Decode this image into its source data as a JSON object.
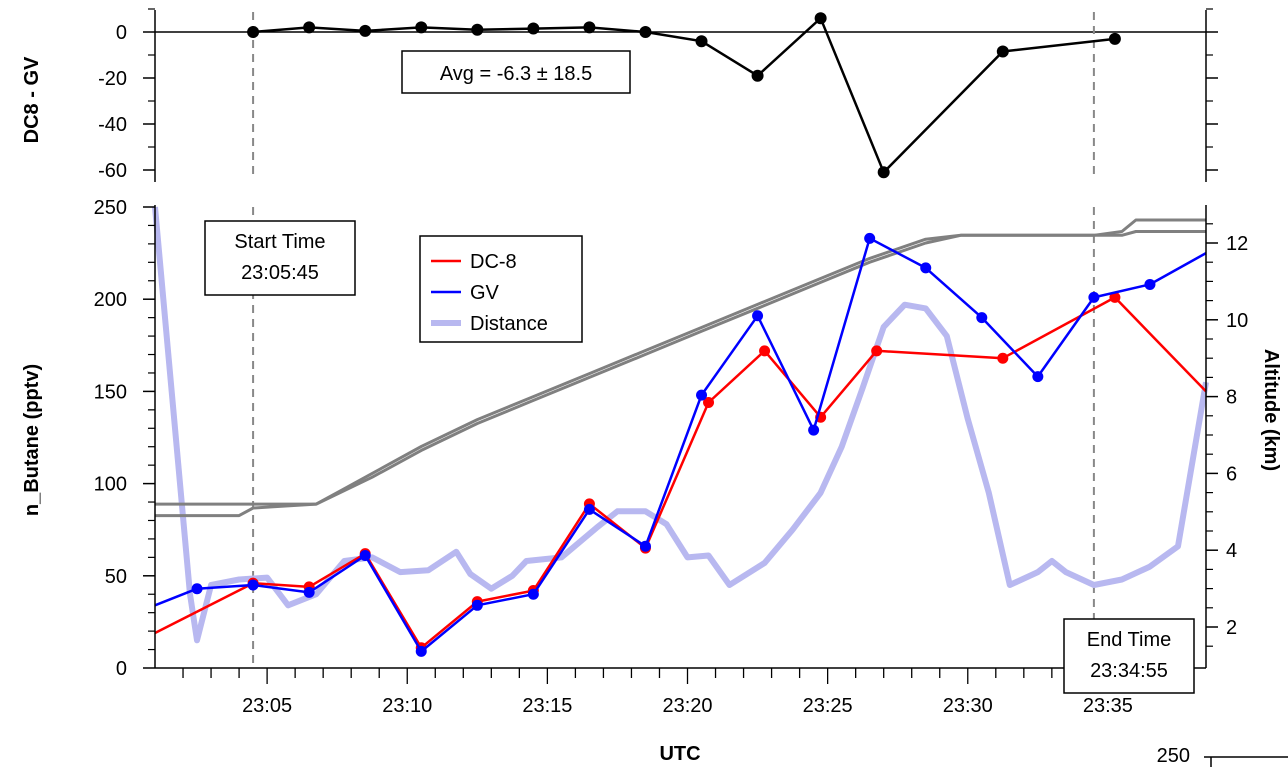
{
  "chart_data": [
    {
      "type": "line",
      "panel": "top",
      "ylabel": "DC8 - GV",
      "ylim": [
        -60,
        10
      ],
      "yticks": [
        "0",
        "-20",
        "-40",
        "-60"
      ],
      "annotation": "Avg = -6.3 ± 18.5",
      "series": [
        {
          "color": "#000000",
          "points": [
            [
              "23:04:30",
              0
            ],
            [
              "23:06:30",
              2
            ],
            [
              "23:08:30",
              0.5
            ],
            [
              "23:10:30",
              2
            ],
            [
              "23:12:30",
              1
            ],
            [
              "23:14:30",
              1.5
            ],
            [
              "23:16:30",
              2
            ],
            [
              "23:18:30",
              0
            ],
            [
              "23:20:30",
              -4
            ],
            [
              "23:22:30",
              -19
            ],
            [
              "23:24:45",
              6
            ],
            [
              "23:27:00",
              -61
            ],
            [
              "23:31:15",
              -8.5
            ],
            [
              "23:35:15",
              -3
            ]
          ]
        }
      ]
    },
    {
      "type": "line",
      "panel": "bottom",
      "xlabel": "UTC",
      "ylabel": "n_Butane (pptv)",
      "y2label": "Altitude (km)",
      "ylim": [
        0,
        250
      ],
      "y2lim": [
        1,
        13
      ],
      "xlim": [
        "23:01:00",
        "23:38:30"
      ],
      "xticks": [
        "23:05",
        "23:10",
        "23:15",
        "23:20",
        "23:25",
        "23:30",
        "23:35"
      ],
      "yticks": [
        "0",
        "50",
        "100",
        "150",
        "200",
        "250"
      ],
      "y2ticks": [
        "2",
        "4",
        "6",
        "8",
        "10",
        "12"
      ],
      "legend": {
        "position": "top-left",
        "entries": [
          "DC-8",
          "GV",
          "Distance"
        ]
      },
      "annotations": [
        {
          "lines": [
            "Start Time",
            "23:05:45"
          ]
        },
        {
          "lines": [
            "End Time",
            "23:34:55"
          ]
        }
      ],
      "vlines": [
        "23:04:30",
        "23:34:30"
      ],
      "series": [
        {
          "name": "DC-8",
          "color": "#ff0000",
          "points": [
            [
              "23:01:00",
              19
            ],
            [
              "23:04:30",
              46
            ],
            [
              "23:06:30",
              44
            ],
            [
              "23:08:30",
              62
            ],
            [
              "23:10:30",
              11
            ],
            [
              "23:12:30",
              36
            ],
            [
              "23:14:30",
              42
            ],
            [
              "23:16:30",
              89
            ],
            [
              "23:18:30",
              65
            ],
            [
              "23:20:45",
              144
            ],
            [
              "23:22:45",
              172
            ],
            [
              "23:24:45",
              136
            ],
            [
              "23:26:45",
              172
            ],
            [
              "23:31:15",
              168
            ],
            [
              "23:35:15",
              201
            ],
            [
              "23:38:30",
              150
            ]
          ]
        },
        {
          "name": "GV",
          "color": "#0000ff",
          "points": [
            [
              "23:01:00",
              34
            ],
            [
              "23:02:30",
              43
            ],
            [
              "23:04:30",
              45
            ],
            [
              "23:06:30",
              41
            ],
            [
              "23:08:30",
              61
            ],
            [
              "23:10:30",
              9
            ],
            [
              "23:12:30",
              34
            ],
            [
              "23:14:30",
              40
            ],
            [
              "23:16:30",
              86
            ],
            [
              "23:18:30",
              66
            ],
            [
              "23:20:30",
              148
            ],
            [
              "23:22:30",
              191
            ],
            [
              "23:24:30",
              129
            ],
            [
              "23:26:30",
              233
            ],
            [
              "23:28:30",
              217
            ],
            [
              "23:30:30",
              190
            ],
            [
              "23:32:30",
              158
            ],
            [
              "23:34:30",
              201
            ],
            [
              "23:36:30",
              208
            ],
            [
              "23:38:30",
              225
            ]
          ]
        },
        {
          "name": "Distance",
          "color": "#b8b8f0",
          "points": [
            [
              "23:01:00",
              250
            ],
            [
              "23:02:15",
              40
            ],
            [
              "23:02:30",
              15
            ],
            [
              "23:03:00",
              45
            ],
            [
              "23:04:00",
              48
            ],
            [
              "23:05:00",
              49
            ],
            [
              "23:05:45",
              34
            ],
            [
              "23:06:45",
              40
            ],
            [
              "23:07:45",
              58
            ],
            [
              "23:08:45",
              60
            ],
            [
              "23:09:45",
              52
            ],
            [
              "23:10:45",
              53
            ],
            [
              "23:11:45",
              63
            ],
            [
              "23:12:15",
              51
            ],
            [
              "23:13:00",
              43
            ],
            [
              "23:13:45",
              50
            ],
            [
              "23:14:15",
              58
            ],
            [
              "23:15:30",
              60
            ],
            [
              "23:16:45",
              76
            ],
            [
              "23:17:30",
              85
            ],
            [
              "23:18:30",
              85
            ],
            [
              "23:19:15",
              78
            ],
            [
              "23:20:00",
              60
            ],
            [
              "23:20:45",
              61
            ],
            [
              "23:21:30",
              45
            ],
            [
              "23:22:45",
              57
            ],
            [
              "23:23:45",
              75
            ],
            [
              "23:24:45",
              95
            ],
            [
              "23:25:30",
              120
            ],
            [
              "23:26:15",
              152
            ],
            [
              "23:27:00",
              185
            ],
            [
              "23:27:45",
              197
            ],
            [
              "23:28:30",
              195
            ],
            [
              "23:29:15",
              180
            ],
            [
              "23:30:00",
              135
            ],
            [
              "23:30:45",
              95
            ],
            [
              "23:31:30",
              45
            ],
            [
              "23:32:30",
              52
            ],
            [
              "23:33:00",
              58
            ],
            [
              "23:33:30",
              52
            ],
            [
              "23:34:30",
              45
            ],
            [
              "23:35:30",
              48
            ],
            [
              "23:36:30",
              55
            ],
            [
              "23:37:30",
              66
            ],
            [
              "23:38:30",
              155
            ]
          ]
        },
        {
          "name": "",
          "color": "#808080",
          "axis": "y2",
          "points": [
            [
              "23:01:00",
              5.2
            ],
            [
              "23:04:30",
              5.2
            ],
            [
              "23:06:45",
              5.2
            ],
            [
              "23:07:45",
              5.6
            ],
            [
              "23:08:45",
              6.0
            ],
            [
              "23:10:30",
              6.7
            ],
            [
              "23:12:30",
              7.4
            ],
            [
              "23:14:30",
              8.0
            ],
            [
              "23:16:30",
              8.6
            ],
            [
              "23:18:30",
              9.2
            ],
            [
              "23:20:30",
              9.8
            ],
            [
              "23:22:30",
              10.4
            ],
            [
              "23:24:30",
              11.0
            ],
            [
              "23:26:30",
              11.6
            ],
            [
              "23:28:30",
              12.1
            ],
            [
              "23:29:45",
              12.2
            ],
            [
              "23:34:30",
              12.2
            ],
            [
              "23:35:30",
              12.3
            ],
            [
              "23:36:00",
              12.6
            ],
            [
              "23:38:30",
              12.6
            ]
          ]
        },
        {
          "name": "",
          "color": "#808080",
          "axis": "y2",
          "points": [
            [
              "23:01:00",
              4.9
            ],
            [
              "23:04:00",
              4.9
            ],
            [
              "23:04:30",
              5.1
            ],
            [
              "23:06:45",
              5.2
            ],
            [
              "23:08:45",
              5.9
            ],
            [
              "23:10:30",
              6.6
            ],
            [
              "23:12:30",
              7.3
            ],
            [
              "23:14:30",
              7.9
            ],
            [
              "23:16:30",
              8.5
            ],
            [
              "23:18:30",
              9.1
            ],
            [
              "23:20:30",
              9.7
            ],
            [
              "23:22:30",
              10.3
            ],
            [
              "23:24:30",
              10.9
            ],
            [
              "23:26:30",
              11.5
            ],
            [
              "23:28:30",
              12.0
            ],
            [
              "23:29:45",
              12.2
            ],
            [
              "23:34:30",
              12.2
            ],
            [
              "23:35:30",
              12.2
            ],
            [
              "23:36:00",
              12.3
            ],
            [
              "23:38:30",
              12.3
            ]
          ]
        }
      ]
    },
    {
      "type": "line",
      "panel": "partial",
      "yticks": [
        "250"
      ]
    }
  ]
}
